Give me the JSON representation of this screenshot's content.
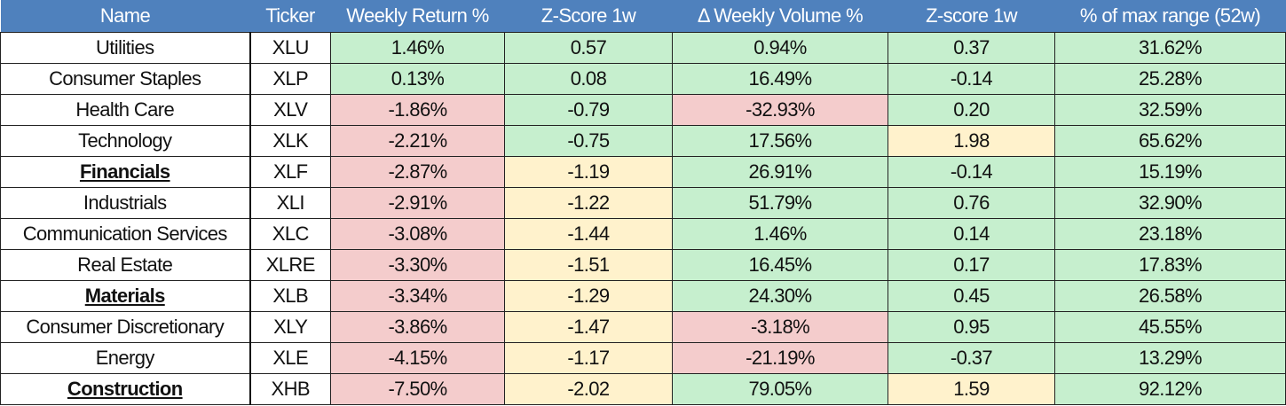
{
  "colors": {
    "header": "#4f81bd",
    "green": "#c6efce",
    "red": "#f4cccc",
    "yellow": "#fff2cc"
  },
  "headers": [
    "Name",
    "Ticker",
    "Weekly Return %",
    "Z-Score 1w",
    "Δ Weekly Volume %",
    "Z-score 1w",
    "% of max range (52w)"
  ],
  "rows": [
    {
      "name": "Utilities",
      "ticker": "XLU",
      "ret": "1.46%",
      "z1": "0.57",
      "vol": "0.94%",
      "z2": "0.37",
      "range": "31.62%",
      "colors": [
        "g",
        "g",
        "g",
        "g",
        "g"
      ],
      "bold": false
    },
    {
      "name": "Consumer Staples",
      "ticker": "XLP",
      "ret": "0.13%",
      "z1": "0.08",
      "vol": "16.49%",
      "z2": "-0.14",
      "range": "25.28%",
      "colors": [
        "g",
        "g",
        "g",
        "g",
        "g"
      ],
      "bold": false
    },
    {
      "name": "Health Care",
      "ticker": "XLV",
      "ret": "-1.86%",
      "z1": "-0.79",
      "vol": "-32.93%",
      "z2": "0.20",
      "range": "32.59%",
      "colors": [
        "r",
        "g",
        "r",
        "g",
        "g"
      ],
      "bold": false
    },
    {
      "name": "Technology",
      "ticker": "XLK",
      "ret": "-2.21%",
      "z1": "-0.75",
      "vol": "17.56%",
      "z2": "1.98",
      "range": "65.62%",
      "colors": [
        "r",
        "g",
        "g",
        "y",
        "g"
      ],
      "bold": false
    },
    {
      "name": "Financials",
      "ticker": "XLF",
      "ret": "-2.87%",
      "z1": "-1.19",
      "vol": "26.91%",
      "z2": "-0.14",
      "range": "15.19%",
      "colors": [
        "r",
        "y",
        "g",
        "g",
        "g"
      ],
      "bold": true
    },
    {
      "name": "Industrials",
      "ticker": "XLI",
      "ret": "-2.91%",
      "z1": "-1.22",
      "vol": "51.79%",
      "z2": "0.76",
      "range": "32.90%",
      "colors": [
        "r",
        "y",
        "g",
        "g",
        "g"
      ],
      "bold": false
    },
    {
      "name": "Communication Services",
      "ticker": "XLC",
      "ret": "-3.08%",
      "z1": "-1.44",
      "vol": "1.46%",
      "z2": "0.14",
      "range": "23.18%",
      "colors": [
        "r",
        "y",
        "g",
        "g",
        "g"
      ],
      "bold": false
    },
    {
      "name": "Real Estate",
      "ticker": "XLRE",
      "ret": "-3.30%",
      "z1": "-1.51",
      "vol": "16.45%",
      "z2": "0.17",
      "range": "17.83%",
      "colors": [
        "r",
        "y",
        "g",
        "g",
        "g"
      ],
      "bold": false
    },
    {
      "name": "Materials",
      "ticker": "XLB",
      "ret": "-3.34%",
      "z1": "-1.29",
      "vol": "24.30%",
      "z2": "0.45",
      "range": "26.58%",
      "colors": [
        "r",
        "y",
        "g",
        "g",
        "g"
      ],
      "bold": true
    },
    {
      "name": "Consumer Discretionary",
      "ticker": "XLY",
      "ret": "-3.86%",
      "z1": "-1.47",
      "vol": "-3.18%",
      "z2": "0.95",
      "range": "45.55%",
      "colors": [
        "r",
        "y",
        "r",
        "g",
        "g"
      ],
      "bold": false
    },
    {
      "name": "Energy",
      "ticker": "XLE",
      "ret": "-4.15%",
      "z1": "-1.17",
      "vol": "-21.19%",
      "z2": "-0.37",
      "range": "13.29%",
      "colors": [
        "r",
        "y",
        "r",
        "g",
        "g"
      ],
      "bold": false
    },
    {
      "name": "Construction",
      "ticker": "XHB",
      "ret": "-7.50%",
      "z1": "-2.02",
      "vol": "79.05%",
      "z2": "1.59",
      "range": "92.12%",
      "colors": [
        "r",
        "y",
        "g",
        "y",
        "g"
      ],
      "bold": true
    }
  ]
}
